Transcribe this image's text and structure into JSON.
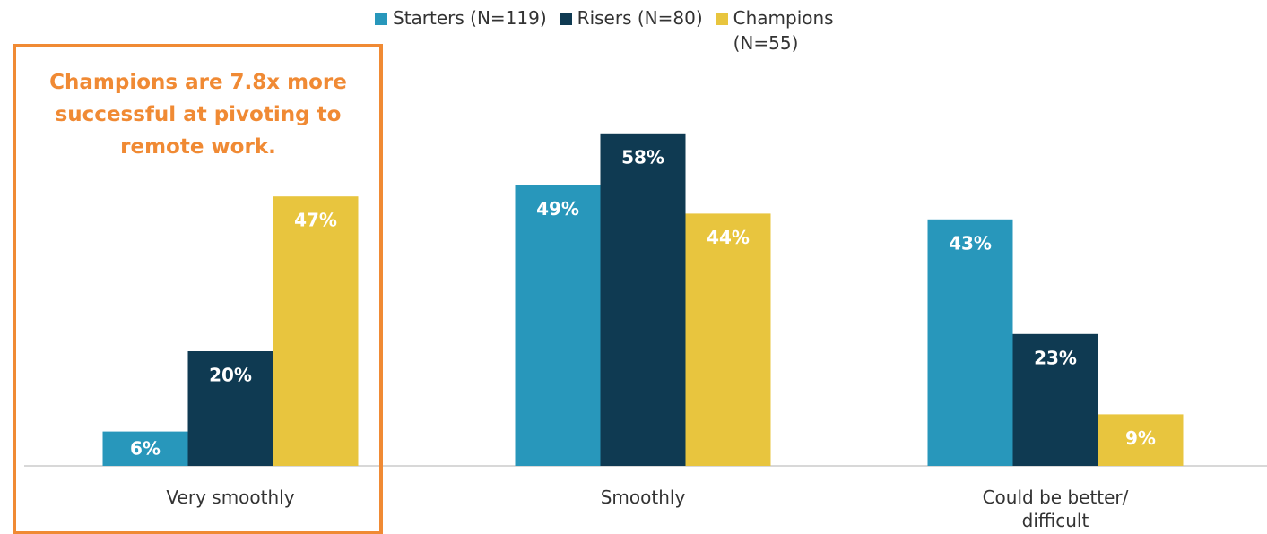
{
  "chart_data": {
    "type": "bar",
    "annotation": "Champions are 7.8x more successful at pivoting to remote work.",
    "categories": [
      "Very smoothly",
      "Smoothly",
      "Could be better/ difficult"
    ],
    "series": [
      {
        "name": "Starters (N=119)",
        "color": "#2897bb",
        "values": [
          6,
          49,
          43
        ],
        "value_labels": [
          "6%",
          "49%",
          "43%"
        ]
      },
      {
        "name": "Risers (N=80)",
        "color": "#0f3a52",
        "values": [
          20,
          58,
          23
        ],
        "value_labels": [
          "20%",
          "58%",
          "23%"
        ]
      },
      {
        "name": "Champions (N=55)",
        "color": "#e8c53e",
        "values": [
          47,
          44,
          9
        ],
        "value_labels": [
          "47%",
          "44%",
          "9%"
        ]
      }
    ],
    "ylim": [
      0,
      60
    ]
  }
}
